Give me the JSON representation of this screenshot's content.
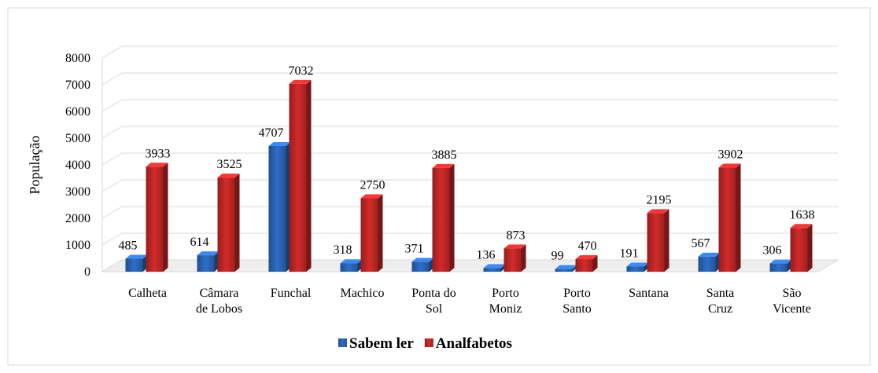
{
  "chart_data": {
    "type": "bar3d",
    "y_label": "População",
    "categories": [
      "Calheta",
      "Câmara de Lobos",
      "Funchal",
      "Machico",
      "Ponta do Sol",
      "Porto Moniz",
      "Porto Santo",
      "Santana",
      "Santa Cruz",
      "São Vicente"
    ],
    "series": [
      {
        "name": "Sabem ler",
        "color": "#2e6fc7",
        "values": [
          485,
          614,
          4707,
          318,
          371,
          136,
          99,
          191,
          567,
          306
        ]
      },
      {
        "name": "Analfabetos",
        "color": "#d42a2a",
        "values": [
          3933,
          3525,
          7032,
          2750,
          3885,
          873,
          470,
          2195,
          3902,
          1638
        ]
      }
    ],
    "ylim": [
      0,
      8000
    ],
    "yticks": [
      0,
      1000,
      2000,
      3000,
      4000,
      5000,
      6000,
      7000,
      8000
    ],
    "grid": true,
    "legend": "bottom"
  }
}
